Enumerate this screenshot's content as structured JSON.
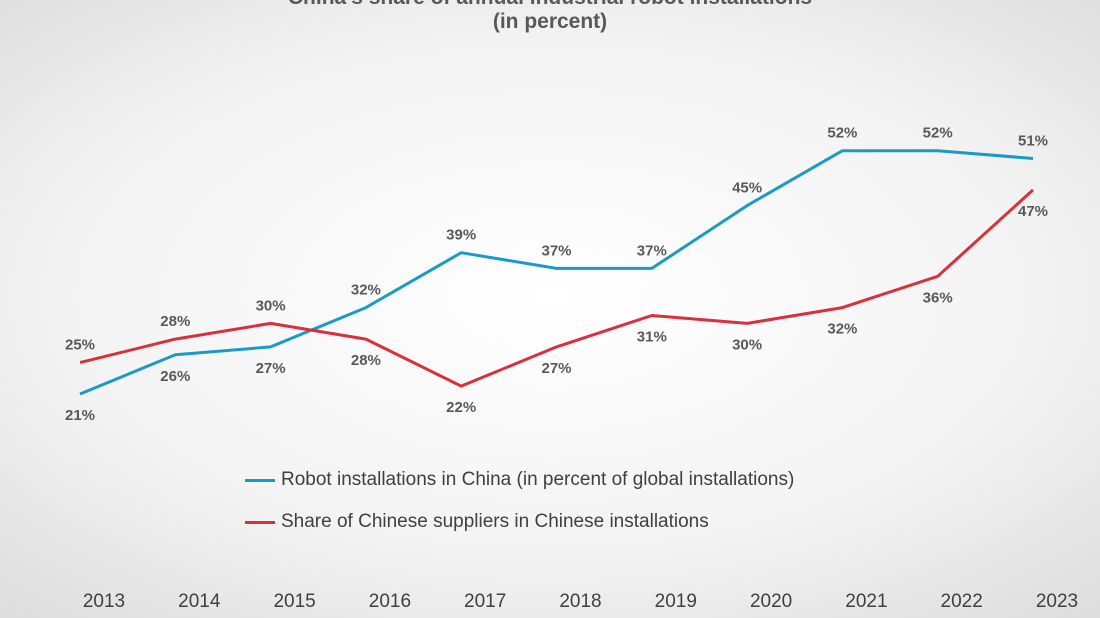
{
  "chart_data": {
    "type": "line",
    "title": "China's share of annual industrial robot installations",
    "subtitle": "(in percent)",
    "categories": [
      "2013",
      "2014",
      "2015",
      "2016",
      "2017",
      "2018",
      "2019",
      "2020",
      "2021",
      "2022",
      "2023"
    ],
    "series": [
      {
        "name": "Robot installations in China (in percent of global installations)",
        "color": "#1a9bc6",
        "values": [
          21,
          26,
          27,
          32,
          39,
          37,
          37,
          45,
          52,
          52,
          51
        ],
        "labels": [
          "21%",
          "26%",
          "27%",
          "32%",
          "39%",
          "37%",
          "37%",
          "45%",
          "52%",
          "52%",
          "51%"
        ]
      },
      {
        "name": "Share of Chinese suppliers in Chinese installations",
        "color": "#d9303c",
        "values": [
          25,
          28,
          30,
          28,
          22,
          27,
          31,
          30,
          32,
          36,
          47
        ],
        "labels": [
          "25%",
          "28%",
          "30%",
          "28%",
          "22%",
          "27%",
          "31%",
          "30%",
          "32%",
          "36%",
          "47%"
        ]
      }
    ],
    "legend_position": "inside-bottom",
    "grid": false
  }
}
